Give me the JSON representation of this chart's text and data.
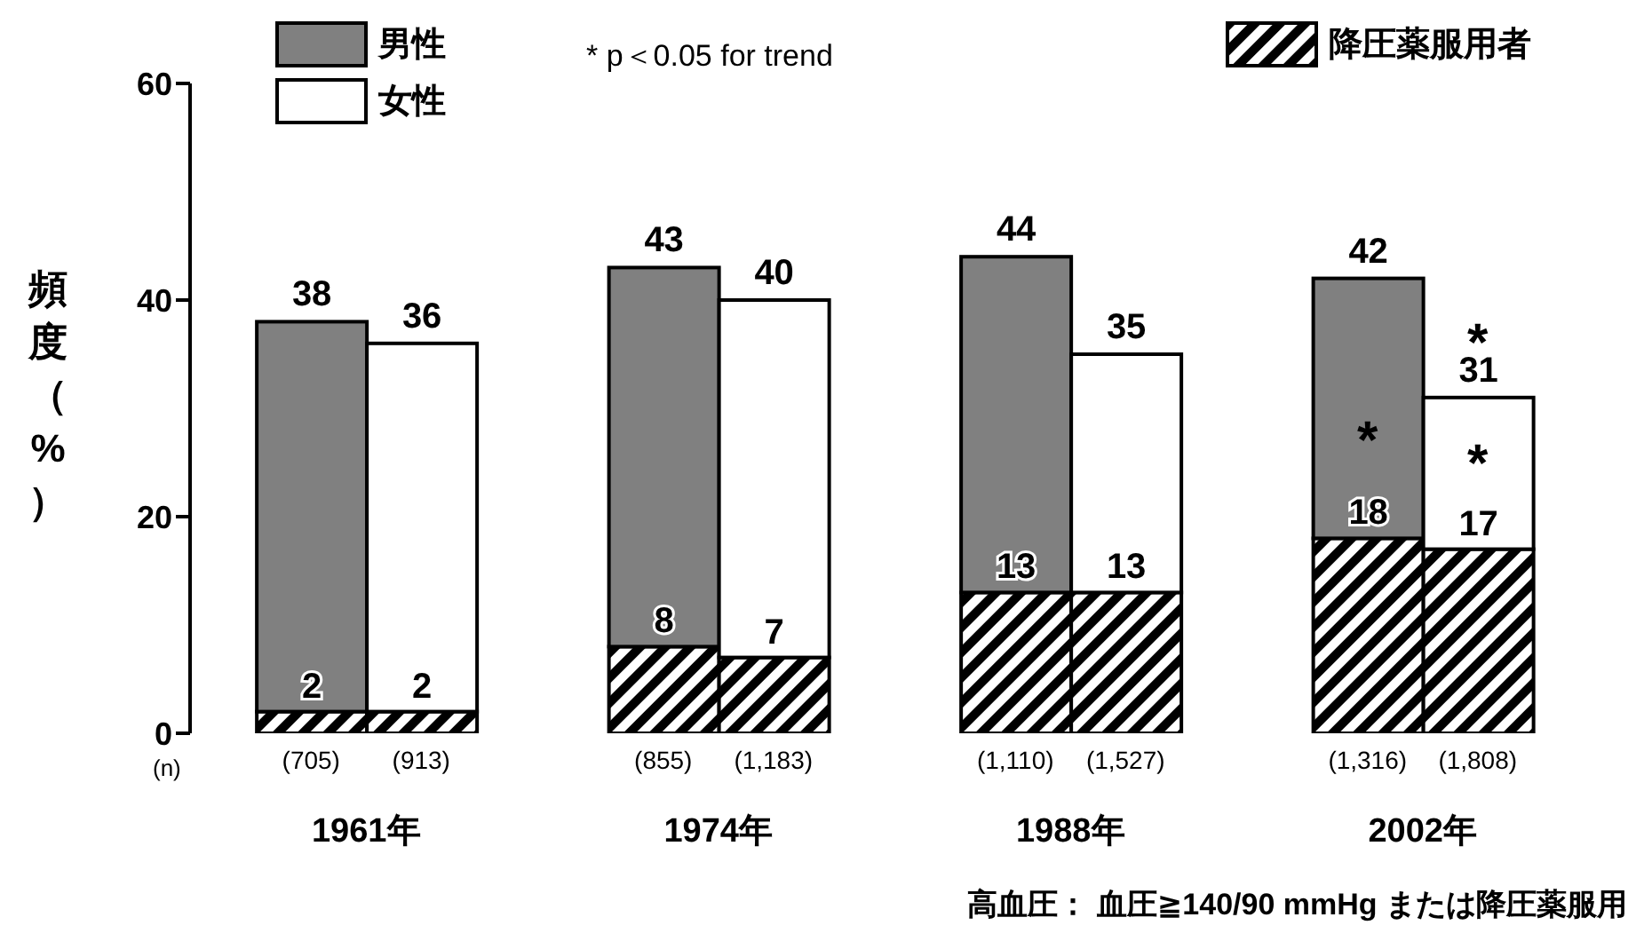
{
  "chart_data": {
    "type": "bar",
    "stacked": true,
    "ylabel": "頻度（%）",
    "ylim": [
      0,
      60
    ],
    "yticks": [
      0,
      20,
      40,
      60
    ],
    "legend": "top left",
    "categories": [
      "(705)",
      "(913)",
      "(855)",
      "(1,183)",
      "(1,110)",
      "(1,527)",
      "(1,316)",
      "(1,808)"
    ],
    "series": [
      {
        "name": "降圧薬服用者",
        "color": "#000000",
        "values": [
          2,
          2,
          8,
          7,
          13,
          13,
          18,
          17
        ],
        "value_labels": [
          "2",
          "2",
          "8",
          "7",
          "13",
          "13",
          "18",
          "17"
        ]
      },
      {
        "name": "男性",
        "color": "#808080",
        "values": [
          36,
          null,
          35,
          null,
          31,
          null,
          24,
          null
        ]
      },
      {
        "name": "女性",
        "color": "#ffffff",
        "values": [
          null,
          34,
          null,
          33,
          null,
          22,
          null,
          14
        ]
      }
    ],
    "totals": [
      "38",
      "36",
      "43",
      "40",
      "44",
      "35",
      "42",
      "31"
    ],
    "annotations": [
      "(n)",
      "1961年",
      "1974年",
      "1988年",
      "2002年",
      "* p＜0.05 for trend",
      "高血圧： 血圧≧140/90 mmHg または降圧薬服用",
      "*",
      "*",
      "*"
    ]
  }
}
